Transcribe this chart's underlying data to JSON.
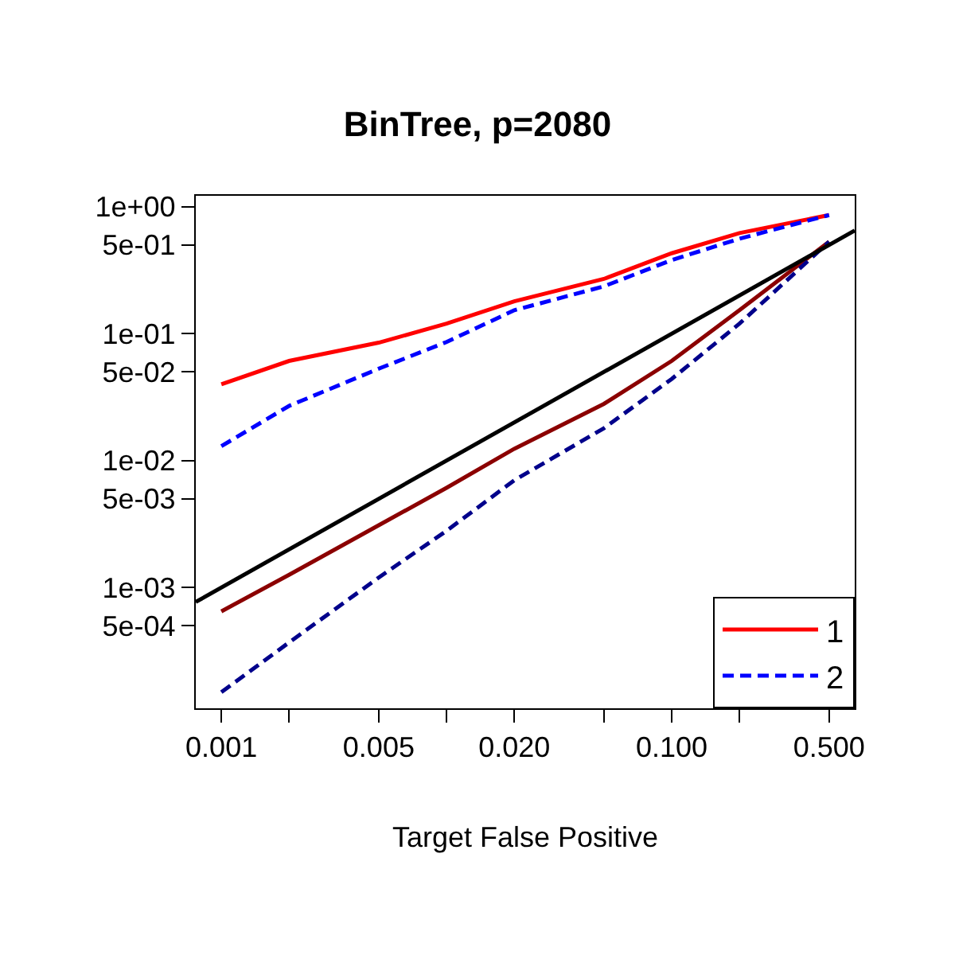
{
  "chart_data": {
    "type": "line",
    "title": "BinTree, p=2080",
    "xlabel": "Target False Positive",
    "log": "xy",
    "legend": "bottom right",
    "marker": "none",
    "x": [
      0.001,
      0.002,
      0.005,
      0.01,
      0.02,
      0.05,
      0.1,
      0.2,
      0.5
    ],
    "series": [
      {
        "name": "1",
        "color": "#ff0000",
        "line_style": "solid",
        "values": [
          0.04,
          0.061,
          0.085,
          0.12,
          0.18,
          0.27,
          0.43,
          0.62,
          0.86
        ]
      },
      {
        "name": "2",
        "color": "#0000ff",
        "line_style": "dashed",
        "values": [
          0.013,
          0.027,
          0.053,
          0.086,
          0.153,
          0.236,
          0.38,
          0.56,
          0.86
        ]
      },
      {
        "color": "#8b0000",
        "line_style": "solid",
        "values": [
          0.00065,
          0.00126,
          0.0031,
          0.0061,
          0.0124,
          0.028,
          0.061,
          0.153,
          0.53
        ]
      },
      {
        "color": "#00008b",
        "line_style": "dashed",
        "values": [
          0.00015,
          0.00037,
          0.0012,
          0.0028,
          0.007,
          0.018,
          0.044,
          0.12,
          0.53
        ]
      },
      {
        "color": "#000000",
        "line_style": "solid",
        "x": [
          0.00077,
          0.65
        ],
        "values": [
          0.00077,
          0.65
        ]
      }
    ],
    "xlim": [
      0.00077,
      0.65
    ],
    "ylim": [
      0.000112,
      1.22
    ],
    "xticks": [
      {
        "value": 0.001,
        "label": "0.001"
      },
      {
        "value": 0.002,
        "label": null
      },
      {
        "value": 0.005,
        "label": "0.005"
      },
      {
        "value": 0.01,
        "label": null
      },
      {
        "value": 0.02,
        "label": "0.020"
      },
      {
        "value": 0.05,
        "label": null
      },
      {
        "value": 0.1,
        "label": "0.100"
      },
      {
        "value": 0.2,
        "label": null
      },
      {
        "value": 0.5,
        "label": "0.500"
      }
    ],
    "yticks": [
      {
        "value": 1,
        "label": "1e+00"
      },
      {
        "value": 0.5,
        "label": "5e-01"
      },
      {
        "value": 0.1,
        "label": "1e-01"
      },
      {
        "value": 0.05,
        "label": "5e-02"
      },
      {
        "value": 0.01,
        "label": "1e-02"
      },
      {
        "value": 0.005,
        "label": "5e-03"
      },
      {
        "value": 0.001,
        "label": "1e-03"
      },
      {
        "value": 0.0005,
        "label": "5e-04"
      }
    ]
  }
}
